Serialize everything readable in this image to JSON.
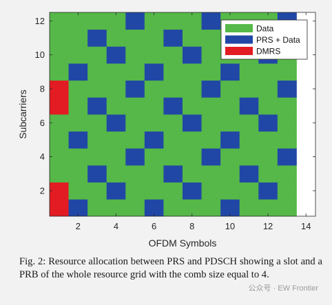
{
  "chart_data": {
    "type": "heatmap",
    "xlabel": "OFDM Symbols",
    "ylabel": "Subcarriers",
    "xlim": [
      0.5,
      14.5
    ],
    "ylim": [
      0.5,
      12.5
    ],
    "xticks": [
      2,
      4,
      6,
      8,
      10,
      12,
      14
    ],
    "yticks": [
      2,
      4,
      6,
      8,
      10,
      12
    ],
    "n_symbols": 13,
    "n_subcarriers": 12,
    "categories": [
      {
        "name": "Data",
        "color": "#55b848"
      },
      {
        "name": "PRS + Data",
        "color": "#2147a6"
      },
      {
        "name": "DMRS",
        "color": "#e31c23"
      }
    ],
    "dmrs_symbol": 1,
    "dmrs_subcarriers": [
      1,
      2,
      7,
      8
    ],
    "prs_cells": [
      [
        2,
        1
      ],
      [
        3,
        3
      ],
      [
        4,
        2
      ],
      [
        5,
        4
      ],
      [
        6,
        1
      ],
      [
        7,
        3
      ],
      [
        8,
        2
      ],
      [
        9,
        4
      ],
      [
        10,
        1
      ],
      [
        11,
        3
      ],
      [
        12,
        2
      ],
      [
        13,
        4
      ],
      [
        2,
        5
      ],
      [
        3,
        7
      ],
      [
        4,
        6
      ],
      [
        5,
        8
      ],
      [
        6,
        5
      ],
      [
        7,
        7
      ],
      [
        8,
        6
      ],
      [
        9,
        8
      ],
      [
        10,
        5
      ],
      [
        11,
        7
      ],
      [
        12,
        6
      ],
      [
        13,
        8
      ],
      [
        2,
        9
      ],
      [
        3,
        11
      ],
      [
        4,
        10
      ],
      [
        5,
        12
      ],
      [
        6,
        9
      ],
      [
        7,
        11
      ],
      [
        8,
        10
      ],
      [
        9,
        12
      ],
      [
        10,
        9
      ],
      [
        11,
        11
      ],
      [
        12,
        10
      ],
      [
        13,
        12
      ]
    ],
    "legend_position": "top-right"
  },
  "caption": "Fig. 2: Resource allocation between PRS and PDSCH showing a slot and a PRB of the whole resource grid with the comb size equal to 4.",
  "watermark": "公众号 · EW Frontier"
}
